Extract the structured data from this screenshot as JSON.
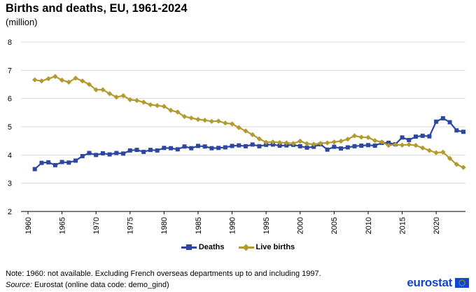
{
  "title": "Births and deaths, EU, 1961-2024",
  "subtitle": "(million)",
  "note": "Note: 1960: not available. Excluding French overseas departments up to and including 1997.",
  "source_label": "Source:",
  "source_text": " Eurostat (online data code: demo_gind)",
  "logo_text": "eurostat",
  "colors": {
    "deaths": "#2d46a0",
    "births": "#b29a2e",
    "grid": "#d9d9d9",
    "axis": "#000000",
    "logo": "#0e47cb"
  },
  "chart_data": {
    "type": "line",
    "title": "Births and deaths, EU, 1961-2024",
    "ylabel": "(million)",
    "xlabel": "",
    "ylim": [
      2,
      8
    ],
    "yticks": [
      2,
      3,
      4,
      5,
      6,
      7,
      8
    ],
    "xlim": [
      1960,
      2024
    ],
    "xticks": [
      1960,
      1965,
      1970,
      1975,
      1980,
      1985,
      1990,
      1995,
      2000,
      2005,
      2010,
      2015,
      2020
    ],
    "x": [
      1961,
      1962,
      1963,
      1964,
      1965,
      1966,
      1967,
      1968,
      1969,
      1970,
      1971,
      1972,
      1973,
      1974,
      1975,
      1976,
      1977,
      1978,
      1979,
      1980,
      1981,
      1982,
      1983,
      1984,
      1985,
      1986,
      1987,
      1988,
      1989,
      1990,
      1991,
      1992,
      1993,
      1994,
      1995,
      1996,
      1997,
      1998,
      1999,
      2000,
      2001,
      2002,
      2003,
      2004,
      2005,
      2006,
      2007,
      2008,
      2009,
      2010,
      2011,
      2012,
      2013,
      2014,
      2015,
      2016,
      2017,
      2018,
      2019,
      2020,
      2021,
      2022,
      2023,
      2024
    ],
    "legend_position": "bottom",
    "series": [
      {
        "name": "Deaths",
        "marker": "square",
        "values": [
          3.5,
          3.72,
          3.74,
          3.64,
          3.75,
          3.73,
          3.8,
          3.96,
          4.07,
          4.0,
          4.06,
          4.02,
          4.07,
          4.05,
          4.16,
          4.18,
          4.11,
          4.18,
          4.16,
          4.25,
          4.24,
          4.2,
          4.3,
          4.24,
          4.32,
          4.3,
          4.24,
          4.25,
          4.27,
          4.32,
          4.34,
          4.31,
          4.37,
          4.31,
          4.36,
          4.37,
          4.33,
          4.34,
          4.36,
          4.31,
          4.26,
          4.29,
          4.38,
          4.19,
          4.29,
          4.23,
          4.27,
          4.31,
          4.33,
          4.35,
          4.33,
          4.43,
          4.43,
          4.38,
          4.62,
          4.53,
          4.65,
          4.68,
          4.66,
          5.18,
          5.3,
          5.16,
          4.87,
          4.82
        ]
      },
      {
        "name": "Live births",
        "marker": "diamond",
        "values": [
          6.66,
          6.62,
          6.7,
          6.78,
          6.65,
          6.58,
          6.72,
          6.62,
          6.5,
          6.31,
          6.31,
          6.17,
          6.05,
          6.1,
          5.96,
          5.93,
          5.87,
          5.78,
          5.75,
          5.72,
          5.58,
          5.52,
          5.36,
          5.31,
          5.26,
          5.23,
          5.19,
          5.2,
          5.13,
          5.1,
          4.97,
          4.85,
          4.72,
          4.57,
          4.45,
          4.46,
          4.44,
          4.43,
          4.41,
          4.49,
          4.4,
          4.38,
          4.41,
          4.43,
          4.46,
          4.49,
          4.56,
          4.68,
          4.63,
          4.62,
          4.51,
          4.46,
          4.34,
          4.37,
          4.35,
          4.37,
          4.34,
          4.25,
          4.16,
          4.08,
          4.1,
          3.88,
          3.67,
          3.56
        ]
      }
    ]
  }
}
